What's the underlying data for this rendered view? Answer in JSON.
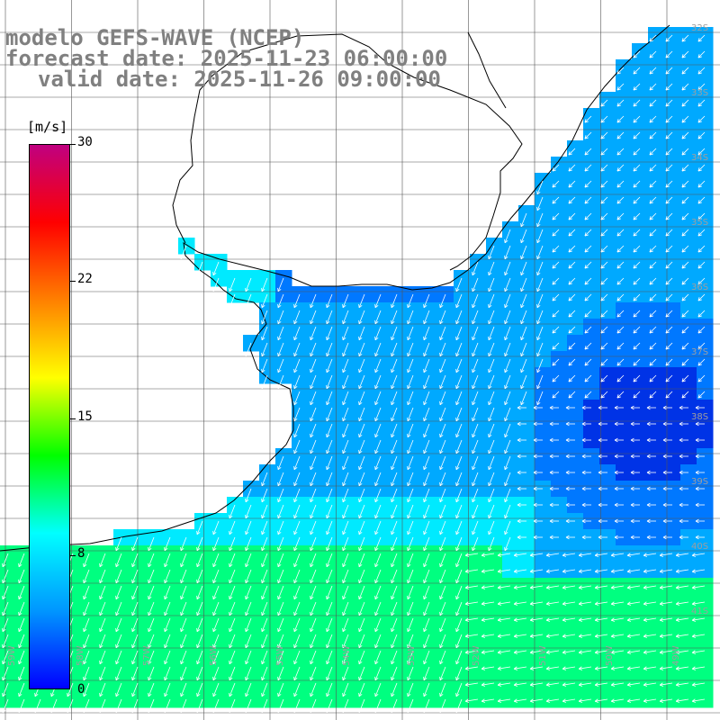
{
  "title": {
    "model": "modelo GEFS-WAVE (NCEP)",
    "forecast": "forecast date: 2025-11-23 06:00:00",
    "valid": "valid date: 2025-11-26 09:00:00"
  },
  "colorbar": {
    "unit": "[m/s]",
    "ticks": [
      "30",
      "22",
      "15",
      "8",
      "0"
    ],
    "colors": [
      "#0000ff",
      "#0096ff",
      "#00ffff",
      "#00ff00",
      "#ffff00",
      "#ff8000",
      "#ff0000",
      "#c00080"
    ]
  },
  "map": {
    "lat_labels": [
      "32S",
      "33S",
      "34S",
      "35S",
      "36S",
      "37S",
      "38S",
      "39S",
      "40S",
      "41S"
    ],
    "lon_labels": [
      "59W",
      "58W",
      "57W",
      "56W",
      "55W",
      "54W",
      "53W",
      "52W",
      "51W",
      "50W",
      "49W"
    ],
    "ocean_colors": {
      "deep_blue": "#0033e6",
      "blue": "#0078ff",
      "sky": "#00a9ff",
      "cyan": "#00eaff",
      "green": "#00ff80"
    }
  }
}
